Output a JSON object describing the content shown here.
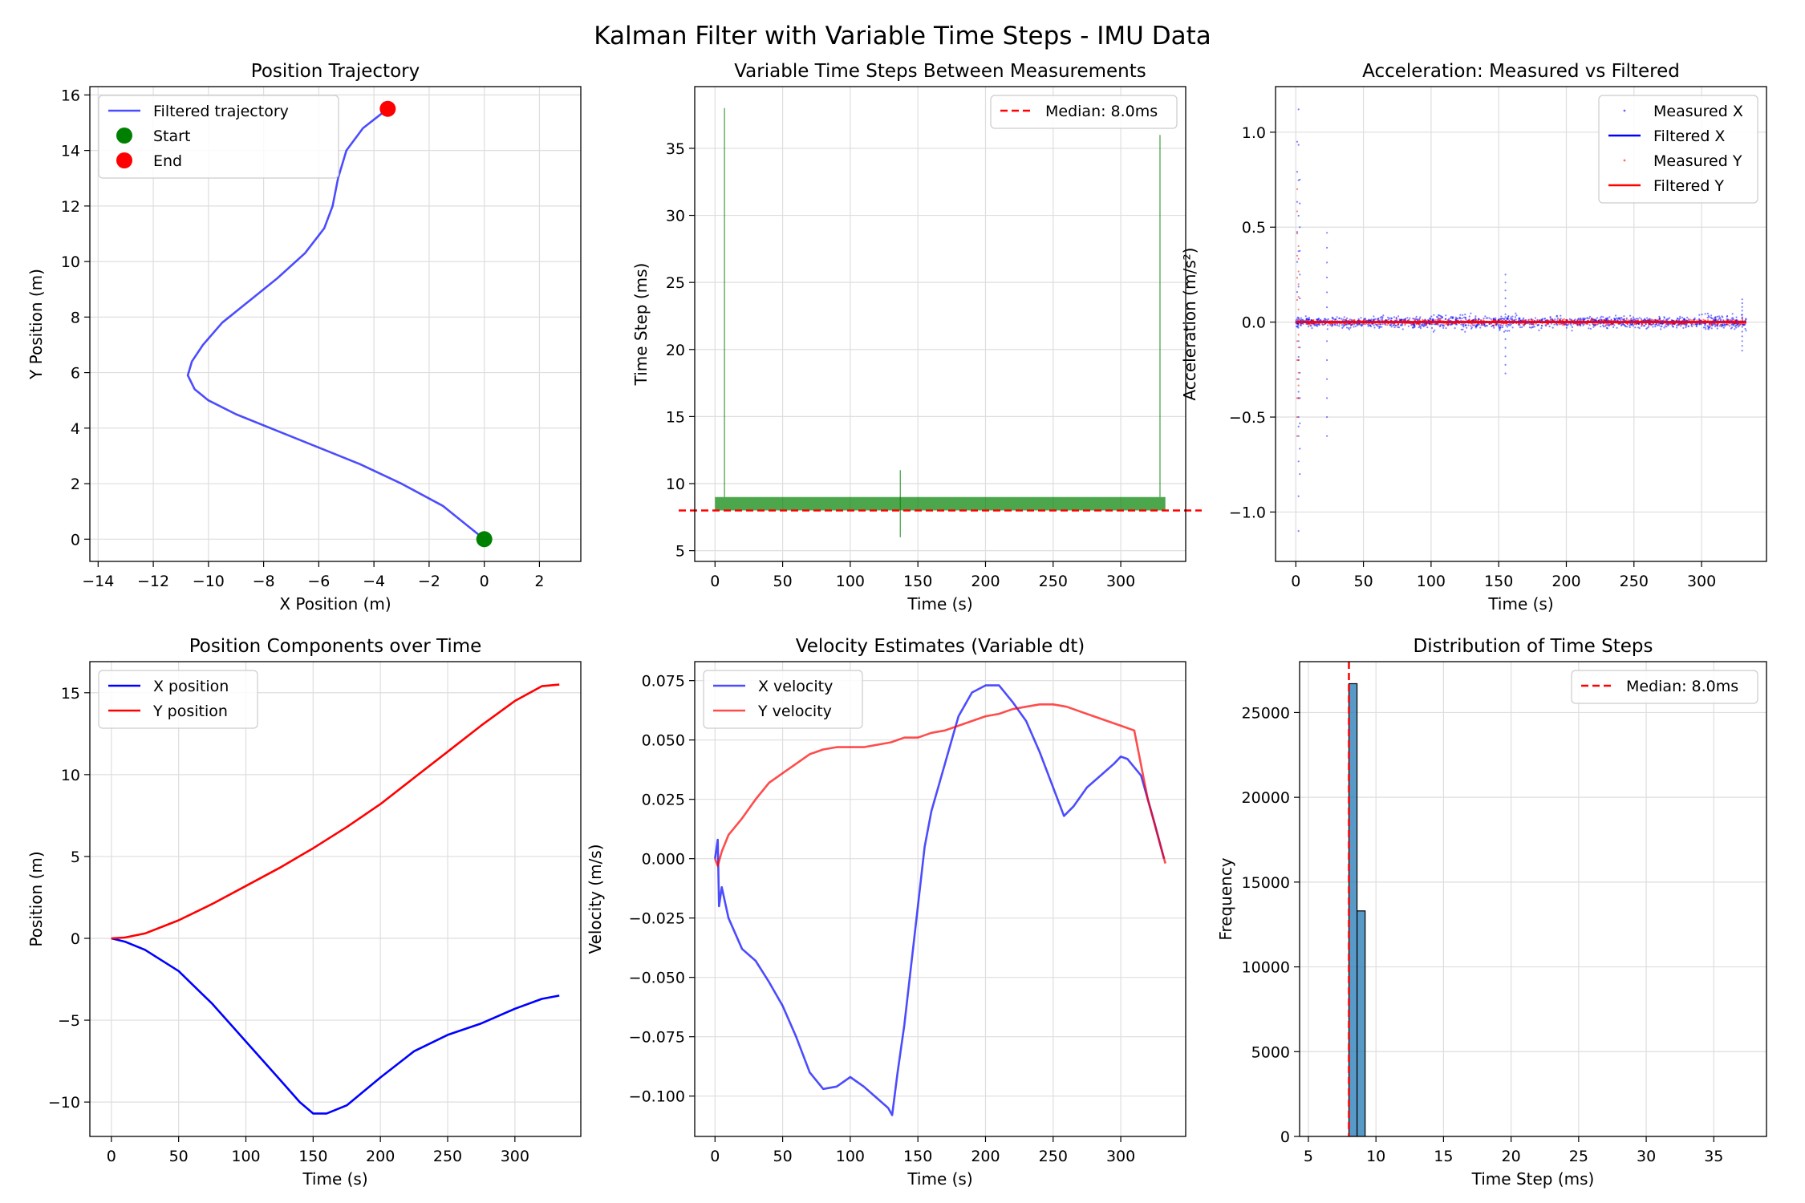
{
  "figure": {
    "title": "Kalman Filter with Variable Time Steps - IMU Data",
    "colors": {
      "blue": "#0000ff",
      "red": "#ff0000",
      "green": "#008000",
      "hist": "#1f77b4",
      "grid": "#b0b0b0"
    }
  },
  "chart_data": [
    {
      "id": "p1",
      "type": "line",
      "title": "Position Trajectory",
      "xlabel": "X Position (m)",
      "ylabel": "Y Position (m)",
      "xlim": [
        -14.3,
        3.5
      ],
      "ylim": [
        -0.8,
        16.3
      ],
      "xticks": [
        -14,
        -12,
        -10,
        -8,
        -6,
        -4,
        -2,
        0,
        2
      ],
      "yticks": [
        0,
        2,
        4,
        6,
        8,
        10,
        12,
        14,
        16
      ],
      "grid": true,
      "legend": {
        "position": "top-left",
        "entries": [
          "Filtered trajectory",
          "Start",
          "End"
        ]
      },
      "series": [
        {
          "name": "Filtered trajectory",
          "kind": "line",
          "color": "#0000ff",
          "alpha": 0.7,
          "x": [
            0,
            -0.5,
            -1.5,
            -3,
            -4.5,
            -6,
            -7.5,
            -9,
            -10,
            -10.5,
            -10.75,
            -10.6,
            -10.2,
            -9.5,
            -8.5,
            -7.5,
            -6.5,
            -5.8,
            -5.5,
            -5.3,
            -5.0,
            -4.4,
            -3.5
          ],
          "y": [
            0,
            0.4,
            1.2,
            2.0,
            2.7,
            3.3,
            3.9,
            4.5,
            5.0,
            5.4,
            5.9,
            6.4,
            7.0,
            7.8,
            8.6,
            9.4,
            10.3,
            11.2,
            12.0,
            13.0,
            14.0,
            14.8,
            15.5
          ]
        },
        {
          "name": "Start",
          "kind": "point",
          "color": "#008000",
          "x": [
            0
          ],
          "y": [
            0
          ]
        },
        {
          "name": "End",
          "kind": "point",
          "color": "#ff0000",
          "x": [
            -3.5
          ],
          "y": [
            15.5
          ]
        }
      ]
    },
    {
      "id": "p2",
      "type": "line",
      "title": "Variable Time Steps Between Measurements",
      "xlabel": "Time (s)",
      "ylabel": "Time Step (ms)",
      "xlim": [
        -15,
        348
      ],
      "ylim": [
        4.2,
        39.6
      ],
      "xticks": [
        0,
        50,
        100,
        150,
        200,
        250,
        300
      ],
      "yticks": [
        5,
        10,
        15,
        20,
        25,
        30,
        35
      ],
      "grid": true,
      "legend": {
        "position": "top-right",
        "entries": [
          "Median: 8.0ms"
        ]
      },
      "band": {
        "x": [
          0,
          333
        ],
        "y": [
          8,
          9
        ],
        "color": "#008000"
      },
      "spikes": [
        {
          "x": 7,
          "y0": 9,
          "y1": 38
        },
        {
          "x": 137,
          "y0": 6,
          "y1": 11
        },
        {
          "x": 329,
          "y0": 9,
          "y1": 36
        }
      ],
      "hline": {
        "name": "Median: 8.0ms",
        "y": 8.0,
        "color": "#ff0000"
      }
    },
    {
      "id": "p3",
      "type": "scatter",
      "title": "Acceleration: Measured vs Filtered",
      "xlabel": "Time (s)",
      "ylabel": "Acceleration (m/s²)",
      "xlim": [
        -15,
        348
      ],
      "ylim": [
        -1.26,
        1.24
      ],
      "xticks": [
        0,
        50,
        100,
        150,
        200,
        250,
        300
      ],
      "yticks": [
        -1.0,
        -0.5,
        0.0,
        0.5,
        1.0
      ],
      "grid": true,
      "legend": {
        "position": "top-right",
        "entries": [
          "Measured X",
          "Filtered X",
          "Measured Y",
          "Filtered Y"
        ]
      },
      "series": [
        {
          "name": "Measured X",
          "kind": "scatter",
          "color": "#0000ff",
          "x_range": [
            0,
            333
          ],
          "noise_sd": 0.02,
          "outliers": [
            [
              2,
              1.12
            ],
            [
              2,
              -1.1
            ],
            [
              3,
              0.75
            ],
            [
              3,
              -0.8
            ],
            [
              1,
              0.95
            ],
            [
              2,
              -0.6
            ],
            [
              23,
              0.47
            ],
            [
              23,
              -0.6
            ],
            [
              155,
              0.25
            ],
            [
              155,
              -0.27
            ],
            [
              330,
              0.12
            ],
            [
              330,
              -0.15
            ]
          ]
        },
        {
          "name": "Filtered X",
          "kind": "line",
          "color": "#0000ff",
          "x": [
            0,
            333
          ],
          "y": [
            0,
            0
          ]
        },
        {
          "name": "Measured Y",
          "kind": "scatter",
          "color": "#ff0000",
          "x_range": [
            0,
            333
          ],
          "noise_sd": 0.01,
          "outliers": [
            [
              1,
              0.7
            ],
            [
              1,
              -0.6
            ],
            [
              2,
              0.4
            ],
            [
              2,
              -0.4
            ]
          ]
        },
        {
          "name": "Filtered Y",
          "kind": "line",
          "color": "#ff0000",
          "x": [
            0,
            333
          ],
          "y": [
            0,
            0
          ]
        }
      ]
    },
    {
      "id": "p4",
      "type": "line",
      "title": "Position Components over Time",
      "xlabel": "Time (s)",
      "ylabel": "Position (m)",
      "xlim": [
        -16,
        349
      ],
      "ylim": [
        -12.1,
        16.9
      ],
      "xticks": [
        0,
        50,
        100,
        150,
        200,
        250,
        300
      ],
      "yticks": [
        -10,
        -5,
        0,
        5,
        10,
        15
      ],
      "grid": true,
      "legend": {
        "position": "top-left",
        "entries": [
          "X position",
          "Y position"
        ]
      },
      "series": [
        {
          "name": "X position",
          "kind": "line",
          "color": "#0000ff",
          "x": [
            0,
            10,
            25,
            50,
            75,
            100,
            125,
            140,
            150,
            160,
            175,
            200,
            225,
            250,
            275,
            300,
            320,
            333
          ],
          "y": [
            0,
            -0.2,
            -0.7,
            -2.0,
            -4.0,
            -6.3,
            -8.6,
            -10.0,
            -10.7,
            -10.7,
            -10.2,
            -8.5,
            -6.9,
            -5.9,
            -5.2,
            -4.3,
            -3.7,
            -3.5
          ]
        },
        {
          "name": "Y position",
          "kind": "line",
          "color": "#ff0000",
          "x": [
            0,
            10,
            25,
            50,
            75,
            100,
            125,
            150,
            175,
            200,
            225,
            250,
            275,
            300,
            320,
            333
          ],
          "y": [
            0,
            0.05,
            0.3,
            1.1,
            2.1,
            3.2,
            4.3,
            5.5,
            6.8,
            8.2,
            9.8,
            11.4,
            13.0,
            14.5,
            15.4,
            15.5
          ]
        }
      ]
    },
    {
      "id": "p5",
      "type": "line",
      "title": "Velocity Estimates (Variable dt)",
      "xlabel": "Time (s)",
      "ylabel": "Velocity (m/s)",
      "xlim": [
        -15,
        348
      ],
      "ylim": [
        -0.117,
        0.083
      ],
      "xticks": [
        0,
        50,
        100,
        150,
        200,
        250,
        300
      ],
      "yticks": [
        -0.1,
        -0.075,
        -0.05,
        -0.025,
        0.0,
        0.025,
        0.05,
        0.075
      ],
      "ytick_labels": [
        "−0.100",
        "−0.075",
        "−0.050",
        "−0.025",
        "0.000",
        "0.025",
        "0.050",
        "0.075"
      ],
      "grid": true,
      "legend": {
        "position": "top-left",
        "entries": [
          "X velocity",
          "Y velocity"
        ]
      },
      "series": [
        {
          "name": "X velocity",
          "kind": "line",
          "color": "#0000ff",
          "alpha": 0.7,
          "x": [
            0,
            2,
            3,
            5,
            10,
            20,
            30,
            40,
            50,
            60,
            70,
            80,
            90,
            100,
            110,
            120,
            128,
            131,
            135,
            140,
            150,
            155,
            160,
            170,
            180,
            190,
            200,
            210,
            220,
            230,
            240,
            250,
            258,
            265,
            275,
            285,
            295,
            300,
            305,
            315,
            325,
            332
          ],
          "y": [
            0.0,
            0.008,
            -0.02,
            -0.012,
            -0.025,
            -0.038,
            -0.043,
            -0.052,
            -0.062,
            -0.075,
            -0.09,
            -0.097,
            -0.096,
            -0.092,
            -0.096,
            -0.101,
            -0.105,
            -0.108,
            -0.09,
            -0.07,
            -0.02,
            0.005,
            0.02,
            0.04,
            0.06,
            0.07,
            0.073,
            0.073,
            0.066,
            0.058,
            0.045,
            0.03,
            0.018,
            0.022,
            0.03,
            0.035,
            0.04,
            0.043,
            0.042,
            0.035,
            0.015,
            0.0
          ]
        },
        {
          "name": "Y velocity",
          "kind": "line",
          "color": "#ff0000",
          "alpha": 0.7,
          "x": [
            0,
            2,
            5,
            10,
            20,
            30,
            40,
            50,
            60,
            70,
            80,
            90,
            100,
            110,
            120,
            130,
            140,
            150,
            160,
            170,
            180,
            190,
            200,
            210,
            220,
            230,
            240,
            250,
            260,
            270,
            280,
            290,
            300,
            310,
            320,
            333
          ],
          "y": [
            0.0,
            -0.003,
            0.003,
            0.01,
            0.017,
            0.025,
            0.032,
            0.036,
            0.04,
            0.044,
            0.046,
            0.047,
            0.047,
            0.047,
            0.048,
            0.049,
            0.051,
            0.051,
            0.053,
            0.054,
            0.056,
            0.058,
            0.06,
            0.061,
            0.063,
            0.064,
            0.065,
            0.065,
            0.064,
            0.062,
            0.06,
            0.058,
            0.056,
            0.054,
            0.025,
            -0.002
          ]
        }
      ]
    },
    {
      "id": "p6",
      "type": "bar",
      "title": "Distribution of Time Steps",
      "xlabel": "Time Step (ms)",
      "ylabel": "Frequency",
      "xlim": [
        4.35,
        38.9
      ],
      "ylim": [
        0,
        28000
      ],
      "xticks": [
        5,
        10,
        15,
        20,
        25,
        30,
        35
      ],
      "yticks": [
        0,
        5000,
        10000,
        15000,
        20000,
        25000
      ],
      "grid": true,
      "legend": {
        "position": "top-right",
        "entries": [
          "Median: 8.0ms"
        ]
      },
      "bins": [
        {
          "x0": 8.0,
          "x1": 8.6,
          "value": 26700
        },
        {
          "x0": 8.6,
          "x1": 9.2,
          "value": 13300
        }
      ],
      "bar_color": "#1f77b4",
      "vline": {
        "name": "Median: 8.0ms",
        "x": 8.0,
        "color": "#ff0000"
      }
    }
  ]
}
